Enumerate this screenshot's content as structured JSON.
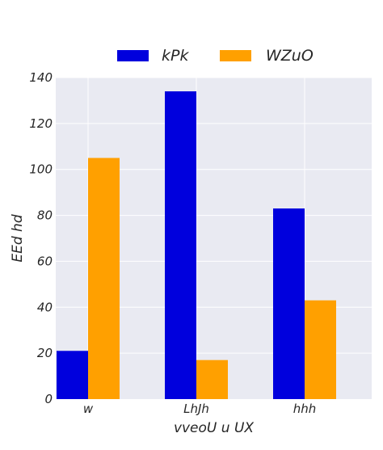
{
  "chart_data": {
    "type": "bar",
    "title": "",
    "xlabel": "vveoU u UX",
    "ylabel": "EEd hd",
    "categories": [
      "w",
      "LhJh",
      "hhh"
    ],
    "series": [
      {
        "name": "kPk",
        "values": [
          21,
          134,
          83
        ],
        "color": "#0000dd"
      },
      {
        "name": "WZuO",
        "values": [
          105,
          17,
          43
        ],
        "color": "#ffa000"
      }
    ],
    "ylim": [
      0,
      140
    ],
    "yticks": [
      0,
      20,
      40,
      60,
      80,
      100,
      120,
      140
    ],
    "grid": true,
    "legend_position": "top-center",
    "plot_background": "#e9eaf2",
    "grid_color": "#ffffff"
  }
}
